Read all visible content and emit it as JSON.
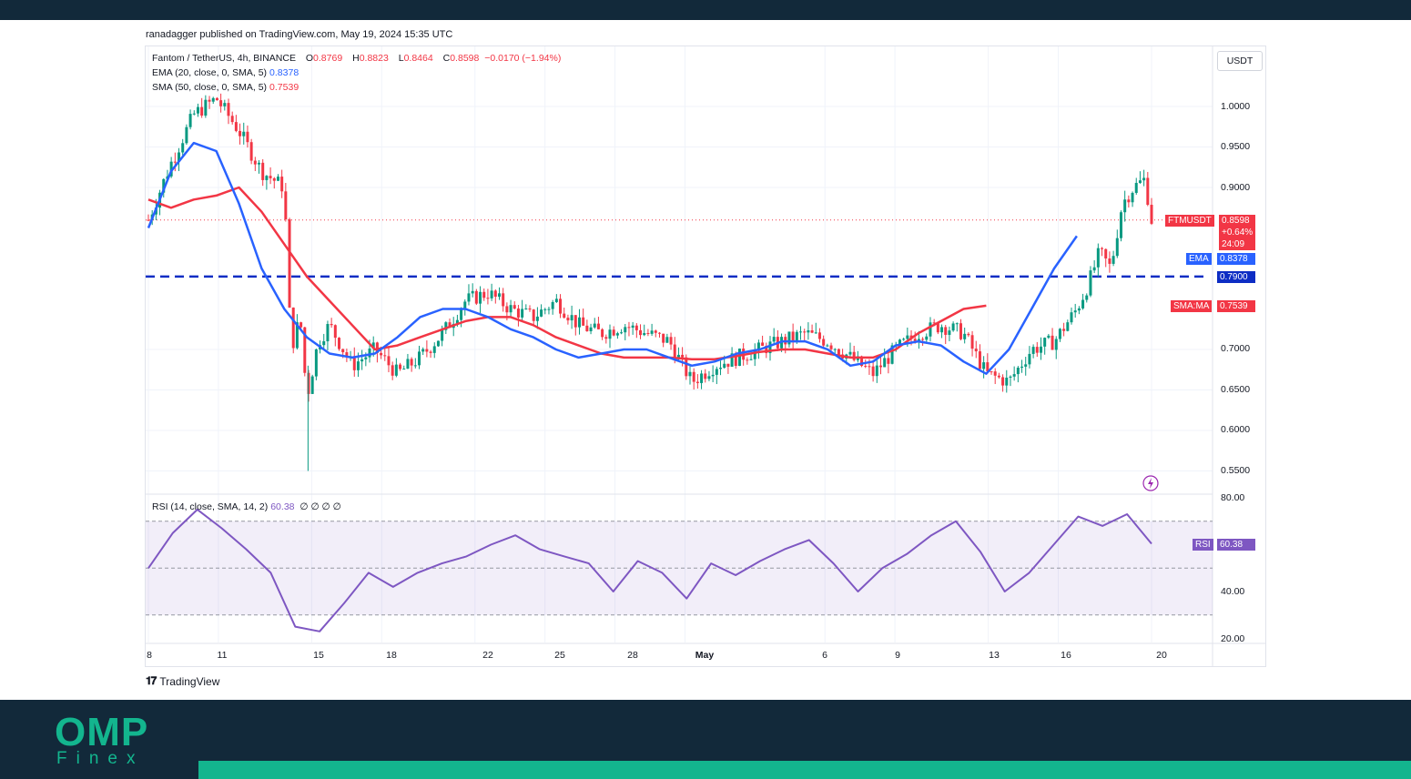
{
  "published": "ranadagger published on TradingView.com, May 19, 2024 15:35 UTC",
  "footer_brand": "TradingView",
  "logo": {
    "main": "OMP",
    "sub": "Finex"
  },
  "legend": {
    "symbol": "Fantom / TetherUS, 4h, BINANCE",
    "o_label": "O",
    "o": "0.8769",
    "h_label": "H",
    "h": "0.8823",
    "l_label": "L",
    "l": "0.8464",
    "c_label": "C",
    "c": "0.8598",
    "change": "−0.0170 (−1.94%)",
    "ema": "EMA (20, close, 0, SMA, 5)",
    "ema_value": "0.8378",
    "sma": "SMA (50, close, 0, SMA, 5)",
    "sma_value": "0.7539",
    "rsi": "RSI (14, close, SMA, 14, 2)",
    "rsi_value": "60.38",
    "rsi_extra": "∅ ∅ ∅ ∅"
  },
  "currency_button": "USDT",
  "price_ticks": [
    "1.0000",
    "0.9500",
    "0.9000",
    "0.7000",
    "0.6500",
    "0.6000",
    "0.5500"
  ],
  "rsi_ticks": [
    "80.00",
    "40.00",
    "20.00"
  ],
  "date_ticks": [
    {
      "label": "8",
      "bold": false
    },
    {
      "label": "11",
      "bold": false
    },
    {
      "label": "15",
      "bold": false
    },
    {
      "label": "18",
      "bold": false
    },
    {
      "label": "22",
      "bold": false
    },
    {
      "label": "25",
      "bold": false
    },
    {
      "label": "28",
      "bold": false
    },
    {
      "label": "May",
      "bold": true
    },
    {
      "label": "6",
      "bold": false
    },
    {
      "label": "9",
      "bold": false
    },
    {
      "label": "13",
      "bold": false
    },
    {
      "label": "16",
      "bold": false
    },
    {
      "label": "20",
      "bold": false
    }
  ],
  "tags": {
    "symbol": "FTMUSDT",
    "price": "0.8598",
    "pct": "+0.64%",
    "countdown": "24:09",
    "ema_label": "EMA",
    "ema_value": "0.8378",
    "level_value": "0.7900",
    "sma_label": "SMA:MA",
    "sma_value": "0.7539",
    "rsi_label": "RSI",
    "rsi_value": "60.38"
  },
  "colors": {
    "up": "#089981",
    "down": "#f23645",
    "ema": "#2962ff",
    "sma": "#f23645",
    "rsi": "#7e57c2",
    "level": "#0d2dc4",
    "band": "#13b58e",
    "dark": "#12293a"
  },
  "chart_data": {
    "type": "line",
    "title": "Fantom / TetherUS, 4h, BINANCE",
    "x_ticks": [
      "8",
      "11",
      "15",
      "18",
      "22",
      "25",
      "28",
      "May",
      "6",
      "9",
      "13",
      "16",
      "20"
    ],
    "ylim": [
      0.54,
      1.04
    ],
    "price_axis_ticks": [
      1.0,
      0.95,
      0.9,
      0.7,
      0.65,
      0.6,
      0.55
    ],
    "horizontal_level": 0.79,
    "current_price": 0.8598,
    "grid": true,
    "price_series": [
      {
        "name": "FTMUSDT",
        "points": [
          [
            0,
            0.86
          ],
          [
            1,
            0.93
          ],
          [
            2,
            0.99
          ],
          [
            3,
            1.01
          ],
          [
            4,
            0.97
          ],
          [
            5,
            0.92
          ],
          [
            6,
            0.9
          ],
          [
            6.3,
            0.7
          ],
          [
            6.7,
            0.74
          ],
          [
            7,
            0.64
          ],
          [
            7.5,
            0.71
          ],
          [
            8,
            0.73
          ],
          [
            9,
            0.68
          ],
          [
            10,
            0.7
          ],
          [
            11,
            0.67
          ],
          [
            12,
            0.69
          ],
          [
            13,
            0.72
          ],
          [
            14,
            0.76
          ],
          [
            15,
            0.77
          ],
          [
            16,
            0.75
          ],
          [
            17,
            0.74
          ],
          [
            18,
            0.76
          ],
          [
            19,
            0.73
          ],
          [
            20,
            0.72
          ],
          [
            21,
            0.73
          ],
          [
            22,
            0.72
          ],
          [
            23,
            0.71
          ],
          [
            24,
            0.66
          ],
          [
            25,
            0.68
          ],
          [
            26,
            0.69
          ],
          [
            27,
            0.7
          ],
          [
            28,
            0.71
          ],
          [
            29,
            0.72
          ],
          [
            30,
            0.71
          ],
          [
            31,
            0.69
          ],
          [
            32,
            0.67
          ],
          [
            33,
            0.7
          ],
          [
            34,
            0.72
          ],
          [
            35,
            0.73
          ],
          [
            36,
            0.72
          ],
          [
            37,
            0.67
          ],
          [
            38,
            0.66
          ],
          [
            39,
            0.7
          ],
          [
            40,
            0.71
          ],
          [
            41,
            0.75
          ],
          [
            41.5,
            0.78
          ],
          [
            42,
            0.82
          ],
          [
            42.5,
            0.8
          ],
          [
            43,
            0.88
          ],
          [
            43.5,
            0.9
          ],
          [
            44,
            0.91
          ],
          [
            44.3,
            0.86
          ]
        ]
      },
      {
        "name": "EMA (20, close, 0, SMA, 5)",
        "points": [
          [
            0,
            0.85
          ],
          [
            1,
            0.92
          ],
          [
            2,
            0.955
          ],
          [
            3,
            0.945
          ],
          [
            4,
            0.88
          ],
          [
            5,
            0.8
          ],
          [
            6,
            0.75
          ],
          [
            7,
            0.715
          ],
          [
            8,
            0.695
          ],
          [
            9,
            0.69
          ],
          [
            10,
            0.695
          ],
          [
            11,
            0.715
          ],
          [
            12,
            0.74
          ],
          [
            13,
            0.75
          ],
          [
            14,
            0.75
          ],
          [
            15,
            0.74
          ],
          [
            16,
            0.725
          ],
          [
            17,
            0.715
          ],
          [
            18,
            0.7
          ],
          [
            19,
            0.69
          ],
          [
            20,
            0.695
          ],
          [
            21,
            0.7
          ],
          [
            22,
            0.7
          ],
          [
            23,
            0.69
          ],
          [
            24,
            0.68
          ],
          [
            25,
            0.685
          ],
          [
            26,
            0.695
          ],
          [
            27,
            0.7
          ],
          [
            28,
            0.71
          ],
          [
            29,
            0.71
          ],
          [
            30,
            0.7
          ],
          [
            31,
            0.68
          ],
          [
            32,
            0.685
          ],
          [
            33,
            0.705
          ],
          [
            34,
            0.71
          ],
          [
            35,
            0.705
          ],
          [
            36,
            0.685
          ],
          [
            37,
            0.67
          ],
          [
            38,
            0.7
          ],
          [
            39,
            0.75
          ],
          [
            40,
            0.8
          ],
          [
            41,
            0.84
          ]
        ]
      },
      {
        "name": "SMA (50, close, 0, SMA, 5)",
        "points": [
          [
            0,
            0.885
          ],
          [
            1,
            0.875
          ],
          [
            2,
            0.885
          ],
          [
            3,
            0.89
          ],
          [
            4,
            0.9
          ],
          [
            5,
            0.87
          ],
          [
            6,
            0.83
          ],
          [
            7,
            0.79
          ],
          [
            8,
            0.76
          ],
          [
            9,
            0.73
          ],
          [
            10,
            0.7
          ],
          [
            11,
            0.705
          ],
          [
            12,
            0.715
          ],
          [
            13,
            0.725
          ],
          [
            14,
            0.735
          ],
          [
            15,
            0.74
          ],
          [
            16,
            0.74
          ],
          [
            17,
            0.73
          ],
          [
            18,
            0.715
          ],
          [
            19,
            0.705
          ],
          [
            20,
            0.695
          ],
          [
            21,
            0.69
          ],
          [
            22,
            0.69
          ],
          [
            23,
            0.69
          ],
          [
            24,
            0.688
          ],
          [
            25,
            0.688
          ],
          [
            26,
            0.692
          ],
          [
            27,
            0.697
          ],
          [
            28,
            0.7
          ],
          [
            29,
            0.7
          ],
          [
            30,
            0.695
          ],
          [
            31,
            0.69
          ],
          [
            32,
            0.69
          ],
          [
            33,
            0.7
          ],
          [
            34,
            0.72
          ],
          [
            35,
            0.735
          ],
          [
            36,
            0.75
          ],
          [
            37,
            0.754
          ]
        ]
      }
    ],
    "rsi": {
      "name": "RSI (14, close, SMA, 14, 2)",
      "ylim": [
        15,
        85
      ],
      "axis_ticks": [
        80,
        40,
        20
      ],
      "upper": 70,
      "middle": 50,
      "lower": 30,
      "current": 60.38,
      "points": [
        [
          0,
          50
        ],
        [
          1,
          65
        ],
        [
          2,
          75
        ],
        [
          3,
          67
        ],
        [
          4,
          58
        ],
        [
          5,
          48
        ],
        [
          6,
          25
        ],
        [
          7,
          23
        ],
        [
          8,
          35
        ],
        [
          9,
          48
        ],
        [
          10,
          42
        ],
        [
          11,
          48
        ],
        [
          12,
          52
        ],
        [
          13,
          55
        ],
        [
          14,
          60
        ],
        [
          15,
          64
        ],
        [
          16,
          58
        ],
        [
          17,
          55
        ],
        [
          18,
          52
        ],
        [
          19,
          40
        ],
        [
          20,
          53
        ],
        [
          21,
          48
        ],
        [
          22,
          37
        ],
        [
          23,
          52
        ],
        [
          24,
          47
        ],
        [
          25,
          53
        ],
        [
          26,
          58
        ],
        [
          27,
          62
        ],
        [
          28,
          52
        ],
        [
          29,
          40
        ],
        [
          30,
          50
        ],
        [
          31,
          56
        ],
        [
          32,
          64
        ],
        [
          33,
          70
        ],
        [
          34,
          57
        ],
        [
          35,
          40
        ],
        [
          36,
          48
        ],
        [
          37,
          60
        ],
        [
          38,
          72
        ],
        [
          39,
          68
        ],
        [
          40,
          73
        ],
        [
          41,
          60.38
        ]
      ]
    }
  }
}
